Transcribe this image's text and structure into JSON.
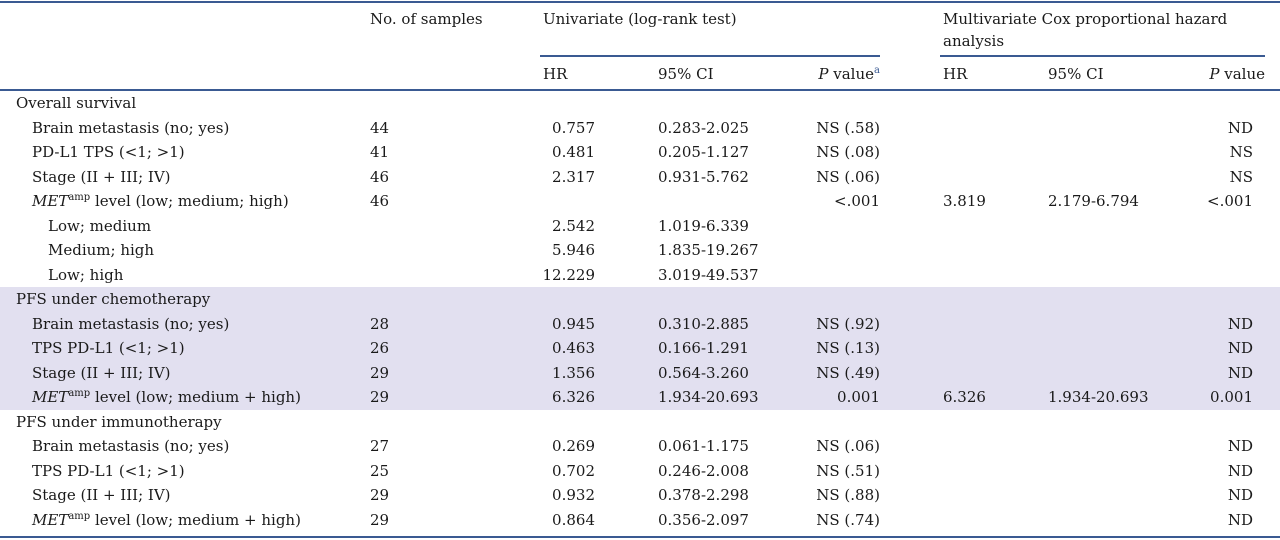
{
  "header": {
    "samples": "No. of samples",
    "univariate": "Univariate (log-rank test)",
    "multivariate": "Multivariate Cox proportional hazard analysis",
    "hr": "HR",
    "ci": "95% CI",
    "p_italic": "P",
    "p_rest": " value",
    "p_footnote": "a"
  },
  "sections": [
    {
      "title": "Overall survival",
      "shaded": false,
      "rows": [
        {
          "label": "Brain metastasis (no; yes)",
          "n": "44",
          "hr": "0.757",
          "ci": "0.283-2.025",
          "p": "NS (.58)",
          "mhr": "",
          "mci": "",
          "mp": "ND"
        },
        {
          "label": "PD-L1 TPS (<1; >1)",
          "n": "41",
          "hr": "0.481",
          "ci": "0.205-1.127",
          "p": "NS (.08)",
          "mhr": "",
          "mci": "",
          "mp": "NS"
        },
        {
          "label": "Stage (II + III; IV)",
          "n": "46",
          "hr": "2.317",
          "ci": "0.931-5.762",
          "p": "NS (.06)",
          "mhr": "",
          "mci": "",
          "mp": "NS"
        },
        {
          "label_italic": "MET",
          "label_sup": "amp",
          "label": " level (low; medium; high)",
          "n": "46",
          "hr": "",
          "ci": "",
          "p": "<.001",
          "mhr": "3.819",
          "mci": "2.179-6.794",
          "mp": "<.001"
        },
        {
          "label": "Low; medium",
          "sub": true,
          "n": "",
          "hr": "2.542",
          "ci": "1.019-6.339",
          "p": "",
          "mhr": "",
          "mci": "",
          "mp": ""
        },
        {
          "label": "Medium; high",
          "sub": true,
          "n": "",
          "hr": "5.946",
          "ci": "1.835-19.267",
          "p": "",
          "mhr": "",
          "mci": "",
          "mp": ""
        },
        {
          "label": "Low; high",
          "sub": true,
          "n": "",
          "hr": "12.229",
          "ci": "3.019-49.537",
          "p": "",
          "mhr": "",
          "mci": "",
          "mp": ""
        }
      ]
    },
    {
      "title": "PFS under chemotherapy",
      "shaded": true,
      "rows": [
        {
          "label": "Brain metastasis (no; yes)",
          "n": "28",
          "hr": "0.945",
          "ci": "0.310-2.885",
          "p": "NS (.92)",
          "mhr": "",
          "mci": "",
          "mp": "ND"
        },
        {
          "label": "TPS PD-L1 (<1; >1)",
          "n": "26",
          "hr": "0.463",
          "ci": "0.166-1.291",
          "p": "NS (.13)",
          "mhr": "",
          "mci": "",
          "mp": "ND"
        },
        {
          "label": "Stage (II + III; IV)",
          "n": "29",
          "hr": "1.356",
          "ci": "0.564-3.260",
          "p": "NS (.49)",
          "mhr": "",
          "mci": "",
          "mp": "ND"
        },
        {
          "label_italic": "MET",
          "label_sup": "amp",
          "label": " level (low; medium + high)",
          "n": "29",
          "hr": "6.326",
          "ci": "1.934-20.693",
          "p": "0.001",
          "mhr": "6.326",
          "mci": "1.934-20.693",
          "mp": "0.001"
        }
      ]
    },
    {
      "title": "PFS under immunotherapy",
      "shaded": false,
      "rows": [
        {
          "label": "Brain metastasis (no; yes)",
          "n": "27",
          "hr": "0.269",
          "ci": "0.061-1.175",
          "p": "NS (.06)",
          "mhr": "",
          "mci": "",
          "mp": "ND"
        },
        {
          "label": "TPS PD-L1 (<1; >1)",
          "n": "25",
          "hr": "0.702",
          "ci": "0.246-2.008",
          "p": "NS (.51)",
          "mhr": "",
          "mci": "",
          "mp": "ND"
        },
        {
          "label": "Stage (II + III; IV)",
          "n": "29",
          "hr": "0.932",
          "ci": "0.378-2.298",
          "p": "NS (.88)",
          "mhr": "",
          "mci": "",
          "mp": "ND"
        },
        {
          "label_italic": "MET",
          "label_sup": "amp",
          "label": " level (low; medium + high)",
          "n": "29",
          "hr": "0.864",
          "ci": "0.356-2.097",
          "p": "NS (.74)",
          "mhr": "",
          "mci": "",
          "mp": "ND"
        }
      ]
    }
  ],
  "colors": {
    "rule": "#3a5a92",
    "shade": "#e2e0f0",
    "text": "#1a1a1a"
  }
}
